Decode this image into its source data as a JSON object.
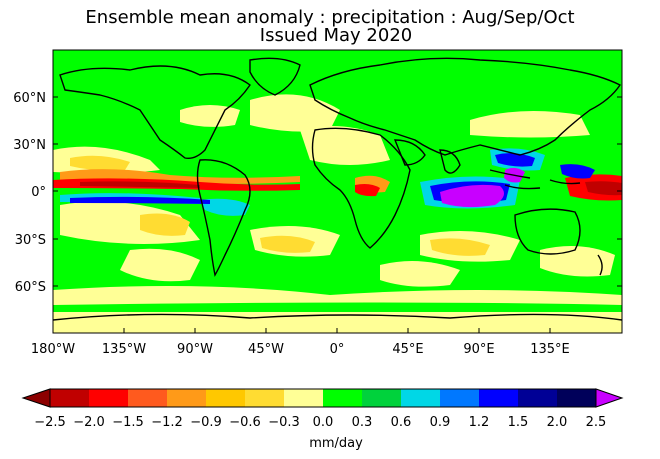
{
  "title": {
    "line1": "Ensemble mean anomaly : precipitation : Aug/Sep/Oct",
    "line2": "Issued May 2020"
  },
  "axes": {
    "lat_labels": [
      "60°N",
      "30°N",
      "0°",
      "30°S",
      "60°S"
    ],
    "lon_labels": [
      "180°W",
      "135°W",
      "90°W",
      "45°W",
      "0°",
      "45°E",
      "90°E",
      "135°E"
    ]
  },
  "colorbar": {
    "unit_label": "mm/day",
    "tick_labels": [
      "−2.5",
      "−2.0",
      "−1.5",
      "−1.2",
      "−0.9",
      "−0.6",
      "−0.3",
      "0.0",
      "0.3",
      "0.6",
      "0.9",
      "1.2",
      "1.5",
      "2.0",
      "2.5"
    ],
    "colors": [
      "#c00000",
      "#ff0000",
      "#ff5a1e",
      "#ff9a18",
      "#ffc800",
      "#ffdc32",
      "#ffff96",
      "#00ff00",
      "#00d23c",
      "#00d7e6",
      "#0078ff",
      "#0000ff",
      "#000096",
      "#00005a"
    ],
    "under_color": "#8c0000",
    "over_color": "#c800ff"
  },
  "colors": {
    "background_field": "#00ff00",
    "coastline": "#000000"
  }
}
